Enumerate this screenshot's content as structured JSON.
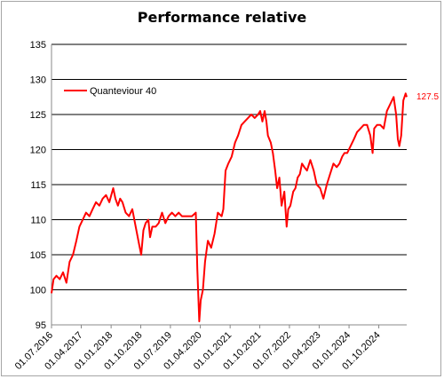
{
  "chart_data": {
    "type": "line",
    "title": "Performance relative",
    "ylim": [
      95,
      135
    ],
    "ytick_labels": [
      "135",
      "130",
      "125",
      "120",
      "115",
      "110",
      "105",
      "100",
      "95"
    ],
    "xtick_labels": [
      "01.07.2016",
      "01.04.2017",
      "01.01.2018",
      "01.10.2018",
      "01.07.2019",
      "01.04.2020",
      "01.01.2021",
      "01.10.2021",
      "01.07.2022",
      "01.04.2023",
      "01.01.2024",
      "01.10.2024"
    ],
    "grid": true,
    "legend_position": "top-left",
    "last_value_label": "127.5",
    "colors": {
      "series": "#ff0000",
      "grid": "#000000",
      "axis": "#888888"
    },
    "series": [
      {
        "name": "Quanteviour  40",
        "x": [
          "2016-07-01",
          "2016-07-20",
          "2016-08-15",
          "2016-09-15",
          "2016-10-15",
          "2016-11-15",
          "2016-12-15",
          "2017-01-15",
          "2017-02-15",
          "2017-03-15",
          "2017-04-15",
          "2017-05-15",
          "2017-06-15",
          "2017-07-15",
          "2017-08-15",
          "2017-09-15",
          "2017-10-15",
          "2017-11-15",
          "2017-12-15",
          "2018-01-20",
          "2018-02-10",
          "2018-03-05",
          "2018-03-25",
          "2018-04-15",
          "2018-05-15",
          "2018-06-15",
          "2018-07-15",
          "2018-08-15",
          "2018-09-15",
          "2018-10-05",
          "2018-10-25",
          "2018-11-15",
          "2018-12-10",
          "2018-12-26",
          "2019-01-15",
          "2019-02-15",
          "2019-03-15",
          "2019-04-15",
          "2019-05-15",
          "2019-06-15",
          "2019-07-15",
          "2019-08-15",
          "2019-09-15",
          "2019-10-15",
          "2019-11-15",
          "2019-12-15",
          "2020-01-15",
          "2020-02-20",
          "2020-03-05",
          "2020-03-23",
          "2020-04-05",
          "2020-04-25",
          "2020-05-15",
          "2020-06-10",
          "2020-07-10",
          "2020-08-10",
          "2020-09-10",
          "2020-10-15",
          "2020-10-30",
          "2020-11-20",
          "2020-12-15",
          "2021-01-15",
          "2021-02-15",
          "2021-03-15",
          "2021-04-15",
          "2021-05-15",
          "2021-06-15",
          "2021-07-15",
          "2021-08-15",
          "2021-09-15",
          "2021-10-05",
          "2021-10-25",
          "2021-11-15",
          "2021-12-01",
          "2021-12-15",
          "2022-01-10",
          "2022-01-30",
          "2022-02-20",
          "2022-03-10",
          "2022-03-30",
          "2022-04-20",
          "2022-05-15",
          "2022-06-05",
          "2022-06-20",
          "2022-07-10",
          "2022-08-05",
          "2022-08-25",
          "2022-09-15",
          "2022-10-05",
          "2022-10-25",
          "2022-11-15",
          "2022-12-10",
          "2023-01-10",
          "2023-02-10",
          "2023-03-10",
          "2023-04-10",
          "2023-05-10",
          "2023-06-10",
          "2023-07-10",
          "2023-08-10",
          "2023-09-10",
          "2023-10-05",
          "2023-10-30",
          "2023-11-20",
          "2023-12-15",
          "2024-01-15",
          "2024-02-15",
          "2024-03-15",
          "2024-04-15",
          "2024-05-15",
          "2024-06-15",
          "2024-07-15",
          "2024-08-05",
          "2024-08-20",
          "2024-09-15",
          "2024-10-15",
          "2024-11-15",
          "2024-12-15",
          "2025-01-15",
          "2025-02-15",
          "2025-03-10",
          "2025-03-25",
          "2025-04-08",
          "2025-04-25",
          "2025-05-15",
          "2025-06-05",
          "2025-06-15"
        ],
        "y": [
          99.5,
          101.5,
          102,
          101.5,
          102.5,
          101,
          104,
          105,
          107,
          109,
          110,
          111,
          110.5,
          111.5,
          112.5,
          112,
          113,
          113.5,
          112.5,
          114.5,
          113,
          112,
          113,
          112.5,
          111,
          110.5,
          111.5,
          109,
          106.5,
          105,
          108.5,
          109.5,
          110,
          107.5,
          109,
          109,
          109.5,
          111,
          109.5,
          110.5,
          111,
          110.5,
          111,
          110.5,
          110.5,
          110.5,
          110.5,
          111,
          103,
          95.5,
          98.5,
          100,
          104,
          107,
          106,
          108,
          111,
          110.5,
          111.5,
          117,
          118,
          119,
          121,
          122,
          123.5,
          124,
          124.5,
          125,
          124.5,
          125,
          125.5,
          124,
          125.5,
          124,
          122,
          121,
          119.5,
          117,
          114.5,
          116,
          112,
          114,
          109,
          111.5,
          112,
          114,
          114.5,
          116,
          116.5,
          118,
          117.5,
          117,
          118.5,
          117,
          115,
          114.5,
          113,
          115,
          116.5,
          118,
          117.5,
          118,
          119,
          119.5,
          119.5,
          120.5,
          121.5,
          122.5,
          123,
          123.5,
          123.5,
          122,
          119.5,
          123,
          123.5,
          123.5,
          123,
          125.5,
          126.5,
          127.5,
          125,
          121.5,
          120.5,
          122,
          127,
          128,
          127.5
        ]
      }
    ]
  }
}
